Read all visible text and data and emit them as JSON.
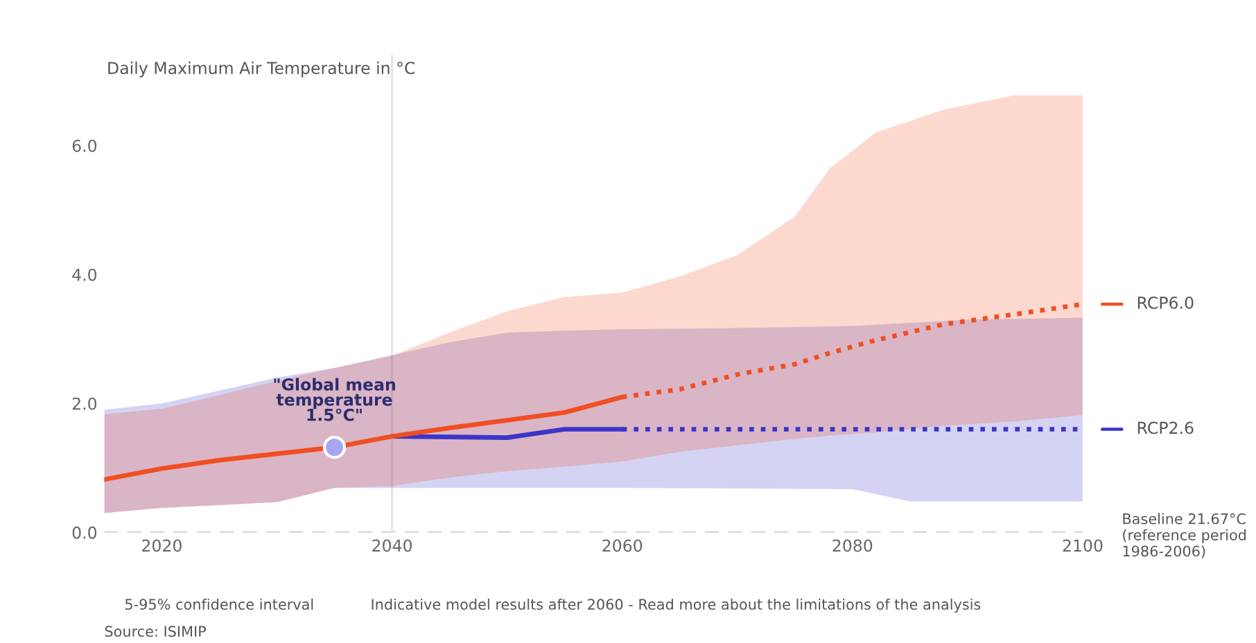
{
  "chart_data": {
    "type": "line",
    "ylabel": "Daily Maximum Air Temperature in °C",
    "xlim": [
      2015,
      2100
    ],
    "xticks": [
      2020,
      2040,
      2060,
      2080,
      2100
    ],
    "ylim": [
      0,
      7.4
    ],
    "yticks": [
      {
        "value": 0,
        "label": "0.0"
      },
      {
        "value": 2,
        "label": "2.0"
      },
      {
        "value": 4,
        "label": "4.0"
      },
      {
        "value": 6,
        "label": "6.0"
      }
    ],
    "grid": false,
    "legend": "right",
    "series": [
      {
        "color": "#3b35c9",
        "line_style": "solid",
        "x": [
          2015,
          2020,
          2030,
          2035,
          2040,
          2045,
          2050,
          2055,
          2060
        ],
        "values": [
          null,
          null,
          null,
          null,
          1.49,
          1.48,
          1.47,
          1.6,
          1.6
        ],
        "lower": [
          0.3,
          0.38,
          0.47,
          0.69,
          0.69,
          0.69,
          0.69,
          0.69,
          0.69
        ],
        "upper": [
          1.9,
          2.0,
          2.4,
          2.55,
          2.75,
          2.95,
          3.1,
          3.13,
          3.15
        ]
      },
      {
        "name": "RCP2.6",
        "color": "#3b35c9",
        "line_style": "dotted",
        "x": [
          2060,
          2070,
          2080,
          2085,
          2090,
          2100
        ],
        "values": [
          1.6,
          1.6,
          1.6,
          1.6,
          1.6,
          1.6
        ],
        "lower": [
          0.69,
          0.68,
          0.67,
          0.48,
          0.48,
          0.48
        ],
        "upper": [
          3.15,
          3.17,
          3.2,
          3.25,
          3.3,
          3.33
        ]
      },
      {
        "color": "#f04e23",
        "line_style": "solid",
        "x": [
          2015,
          2020,
          2025,
          2030,
          2035,
          2040,
          2045,
          2050,
          2055,
          2060
        ],
        "values": [
          0.82,
          0.99,
          1.12,
          1.22,
          1.32,
          1.49,
          1.62,
          1.74,
          1.86,
          2.1
        ],
        "lower": [
          0.3,
          0.38,
          0.42,
          0.47,
          0.69,
          0.72,
          0.85,
          0.95,
          1.02,
          1.1
        ],
        "upper": [
          1.83,
          1.92,
          2.13,
          2.35,
          2.55,
          2.74,
          3.1,
          3.43,
          3.65,
          3.72
        ]
      },
      {
        "name": "RCP6.0",
        "color": "#f04e23",
        "line_style": "dotted",
        "x": [
          2060,
          2065,
          2070,
          2075,
          2078,
          2082,
          2088,
          2094,
          2100
        ],
        "values": [
          2.1,
          2.22,
          2.45,
          2.61,
          2.78,
          2.98,
          3.23,
          3.38,
          3.54
        ],
        "lower": [
          1.1,
          1.25,
          1.35,
          1.45,
          1.5,
          1.55,
          1.65,
          1.72,
          1.82
        ],
        "upper": [
          3.72,
          3.97,
          4.3,
          4.9,
          5.64,
          6.2,
          6.56,
          6.78,
          6.78
        ]
      }
    ],
    "ref_lines": [
      {
        "axis": "y",
        "value": 0,
        "label": "Baseline 21.67°C\n(reference period\n1986-2006)",
        "color": "#cccccc",
        "line_style": "dashed"
      },
      {
        "axis": "x",
        "value": 2040,
        "color": "#e6e6e6",
        "line_style": "solid"
      }
    ],
    "annotations": [
      {
        "text": "\"Global mean\ntemperature\n1.5°C\"",
        "x": 2035,
        "y": 1.32
      },
      "5-95% confidence interval",
      "Indicative model results after 2060 - Read more about the limitations of the analysis",
      "Source: ISIMIP"
    ]
  }
}
